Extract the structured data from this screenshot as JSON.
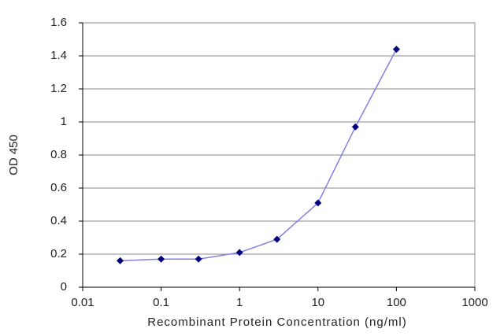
{
  "chart_data": {
    "type": "line",
    "xlabel": "Recombinant Protein Concentration (ng/ml)",
    "ylabel": "OD 450",
    "x": [
      0.03,
      0.1,
      0.3,
      1,
      3,
      10,
      30,
      100
    ],
    "values": [
      0.16,
      0.17,
      0.17,
      0.21,
      0.29,
      0.51,
      0.97,
      1.44
    ],
    "color": "#8080e0",
    "marker_color": "#000080",
    "xscale": "log",
    "xlim": [
      0.01,
      1000
    ],
    "xticks": [
      0.01,
      0.1,
      1,
      10,
      100,
      1000
    ],
    "ylim": [
      0,
      1.6
    ],
    "yticks": [
      0,
      0.2,
      0.4,
      0.6,
      0.8,
      1,
      1.2,
      1.4,
      1.6
    ],
    "grid": true
  }
}
